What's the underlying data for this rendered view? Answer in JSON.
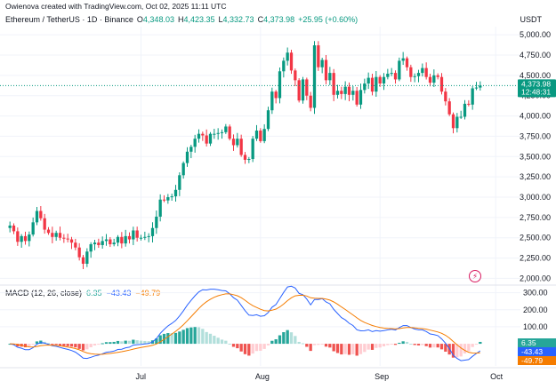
{
  "caption": "Owienova created with TradingView.com, Oct 02, 2025 11:11 UTC",
  "legend": {
    "symbol": "Ethereum / TetherUS · 1D · Binance",
    "o_label": "O",
    "o_value": "4,348.03",
    "h_label": "H",
    "h_value": "4,423.35",
    "l_label": "L",
    "l_value": "4,332.73",
    "c_label": "C",
    "c_value": "4,373.98",
    "change": "+25.95 (+0.60%)"
  },
  "currency": "USDT",
  "price_tag": {
    "price": "4,373.98",
    "countdown": "12:48:31"
  },
  "macd_legend": {
    "name": "MACD (12, 26, close)",
    "hist": "6.35",
    "macd": "−43.43",
    "signal": "−49.79"
  },
  "macd_tags": {
    "hist": "6.35",
    "macd": "-43.43",
    "signal": "-49.79"
  },
  "colors": {
    "up": "#089981",
    "down": "#f23645",
    "macd": "#2962ff",
    "signal": "#f57c00",
    "hist_up": "#26a69a",
    "hist_down": "#ef5350"
  },
  "icons": {
    "indicator": "tradingview-indicator-icon"
  },
  "chart_data": [
    {
      "type": "candlestick",
      "title": "Ethereum / TetherUS · 1D · Binance",
      "x_ticks": [
        "Jul",
        "Aug",
        "Sep",
        "Oct"
      ],
      "y_ticks": [
        "5,000.00",
        "4,750.00",
        "4,500.00",
        "4,250.00",
        "4,000.00",
        "3,750.00",
        "3,500.00",
        "3,250.00",
        "3,000.00",
        "2,750.00",
        "2,500.00",
        "2,250.00",
        "2,000.00"
      ],
      "ylim": [
        1950,
        5100
      ],
      "close": [
        2650,
        2580,
        2450,
        2520,
        2460,
        2540,
        2690,
        2830,
        2740,
        2600,
        2560,
        2510,
        2560,
        2500,
        2490,
        2480,
        2440,
        2380,
        2260,
        2180,
        2330,
        2420,
        2440,
        2410,
        2460,
        2480,
        2420,
        2440,
        2510,
        2430,
        2520,
        2480,
        2590,
        2500,
        2500,
        2510,
        2520,
        2620,
        2760,
        2970,
        2960,
        3000,
        3010,
        3090,
        3270,
        3420,
        3560,
        3620,
        3720,
        3780,
        3760,
        3660,
        3780,
        3780,
        3790,
        3800,
        3870,
        3720,
        3640,
        3720,
        3520,
        3460,
        3470,
        3720,
        3820,
        3690,
        3840,
        4070,
        4300,
        4220,
        4550,
        4680,
        4780,
        4560,
        4440,
        4190,
        4450,
        4250,
        4100,
        4870,
        4600,
        4690,
        4440,
        4530,
        4260,
        4310,
        4270,
        4360,
        4260,
        4310,
        4140,
        4320,
        4400,
        4470,
        4300,
        4480,
        4400,
        4480,
        4520,
        4530,
        4450,
        4680,
        4710,
        4600,
        4480,
        4490,
        4530,
        4590,
        4480,
        4410,
        4500,
        4480,
        4300,
        4180,
        4020,
        3850,
        3990,
        3990,
        4150,
        4140,
        4340,
        4350,
        4374
      ]
    },
    {
      "type": "macd",
      "title": "MACD (12, 26, close)",
      "y_ticks": [
        "300.00",
        "200.00",
        "100.00"
      ],
      "ylim": [
        -130,
        350
      ],
      "series": [
        {
          "name": "MACD",
          "values": []
        },
        {
          "name": "Signal",
          "values": []
        },
        {
          "name": "Histogram",
          "values": []
        }
      ]
    }
  ]
}
